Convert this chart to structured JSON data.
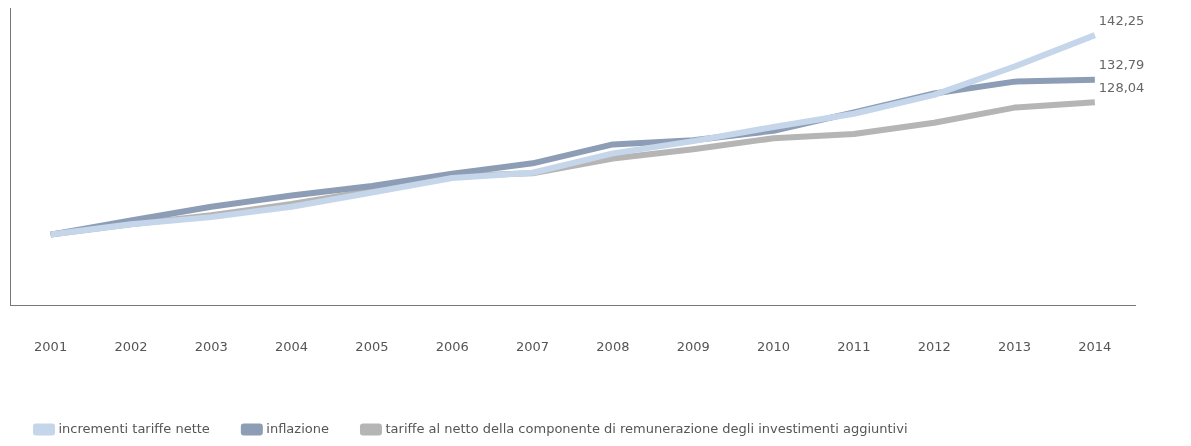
{
  "chart_data": {
    "type": "line",
    "categories": [
      "2001",
      "2002",
      "2003",
      "2004",
      "2005",
      "2006",
      "2007",
      "2008",
      "2009",
      "2010",
      "2011",
      "2012",
      "2013",
      "2014"
    ],
    "ylim": [
      85,
      148
    ],
    "tick_labels": "x",
    "grid": false,
    "legend": "bottom left",
    "marker": "none",
    "line_style": "solid",
    "series": [
      {
        "name": "incrementi tariffe nette",
        "color": "#c5d5ea",
        "values": [
          100,
          102.2,
          103.7,
          105.9,
          108.9,
          112.0,
          113.1,
          117.2,
          119.8,
          122.8,
          125.6,
          129.6,
          135.6,
          142.25
        ],
        "value_labels": [
          null,
          null,
          null,
          null,
          null,
          null,
          null,
          null,
          null,
          null,
          null,
          null,
          null,
          "142,25"
        ]
      },
      {
        "name": "inflazione",
        "color": "#8d9db5",
        "values": [
          100,
          103.0,
          105.9,
          108.3,
          110.3,
          112.9,
          115.1,
          119.1,
          120.0,
          122.0,
          125.9,
          129.9,
          132.4,
          132.79
        ],
        "value_labels": [
          null,
          null,
          null,
          null,
          null,
          null,
          null,
          null,
          null,
          null,
          null,
          null,
          null,
          "132,79"
        ]
      },
      {
        "name": "tariffe al netto della componente di remunerazione degli investimenti aggiuntivi",
        "color": "#b5b5b5",
        "values": [
          100,
          102.2,
          104.1,
          106.5,
          109.3,
          112.4,
          113.0,
          116.1,
          118.1,
          120.4,
          121.3,
          123.7,
          126.9,
          128.04
        ],
        "value_labels": [
          null,
          null,
          null,
          null,
          null,
          null,
          null,
          null,
          null,
          null,
          null,
          null,
          null,
          "128,04"
        ]
      }
    ]
  }
}
